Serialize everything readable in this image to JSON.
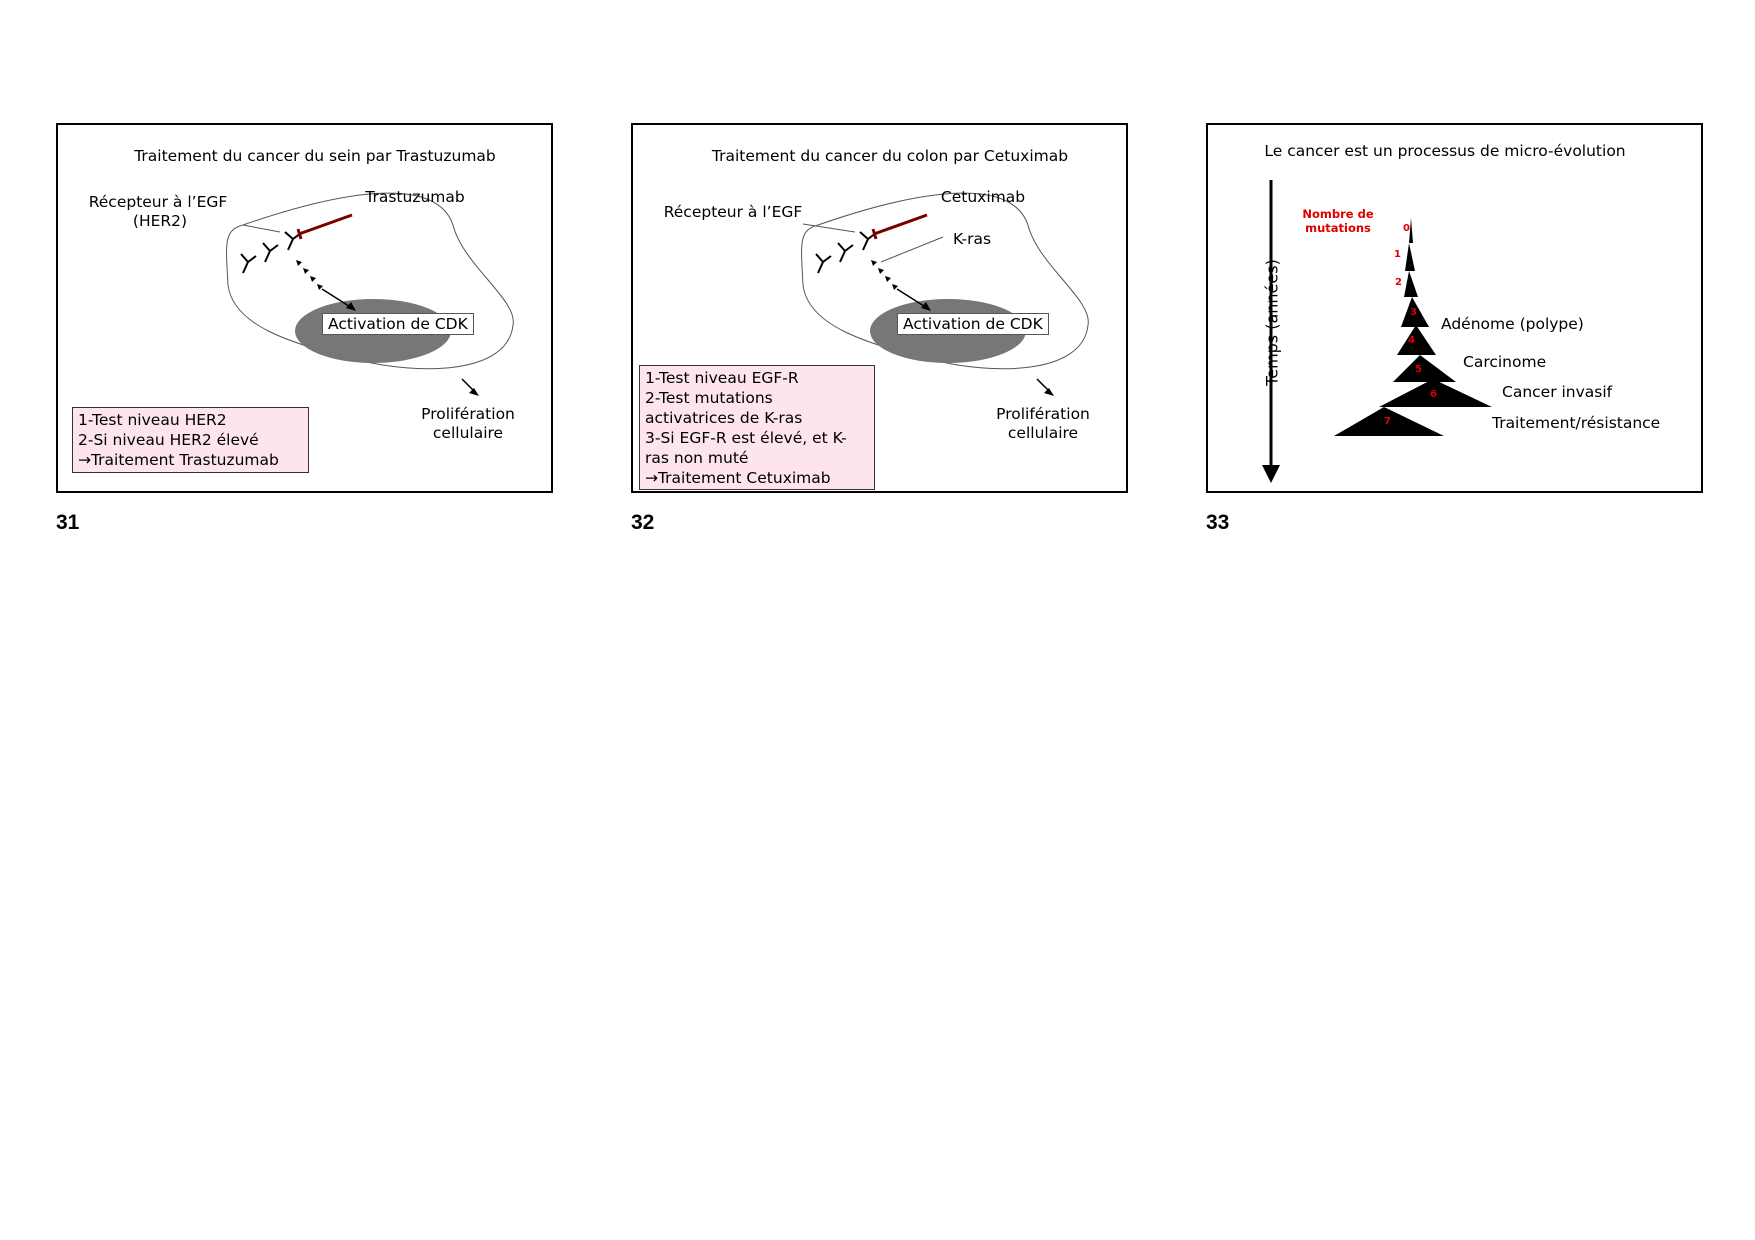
{
  "slides": [
    {
      "number": "31",
      "title": "Traitement du cancer du sein par Trastuzumab",
      "receptor_label_1": "Récepteur à l’EGF",
      "receptor_label_2": "(HER2)",
      "drug_label": "Trastuzumab",
      "cdk_label": "Activation de CDK",
      "prolif_1": "Prolifération",
      "prolif_2": "cellulaire",
      "box_lines": [
        "1-Test niveau HER2",
        "2-Si niveau HER2 élevé",
        "→Traitement Trastuzumab"
      ]
    },
    {
      "number": "32",
      "title": "Traitement du cancer du colon par Cetuximab",
      "receptor_label_1": "Récepteur à l’EGF",
      "drug_label": "Cetuximab",
      "kras_label": "K-ras",
      "cdk_label": "Activation de CDK",
      "prolif_1": "Prolifération",
      "prolif_2": "cellulaire",
      "box_lines": [
        "1-Test niveau EGF-R",
        "2-Test mutations",
        "activatrices de K-ras",
        "3-Si EGF-R est élevé, et K-",
        "ras non muté",
        "→Traitement Cetuximab"
      ]
    },
    {
      "number": "33",
      "title": "Le cancer est un processus de micro-évolution",
      "axis_label": "Temps (années)",
      "mutations_label_1": "Nombre de",
      "mutations_label_2": "mutations",
      "mutation_counts": [
        "0",
        "1",
        "2",
        "3",
        "4",
        "5",
        "6",
        "7"
      ],
      "stages": [
        "Adénome (polype)",
        "Carcinome",
        "Cancer invasif",
        "Traitement/résistance"
      ]
    }
  ],
  "colors": {
    "inhibitor": "#7a0000",
    "nucleus": "#777777",
    "pink_box": "#fde4ee",
    "mutation_red": "#e00000"
  }
}
